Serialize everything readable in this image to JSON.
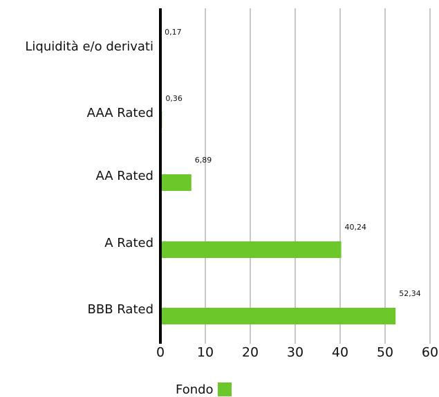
{
  "chart_data": {
    "type": "bar",
    "orientation": "horizontal",
    "categories": [
      "Liquidità e/o derivati",
      "AAA Rated",
      "AA Rated",
      "A Rated",
      "BBB Rated"
    ],
    "series": [
      {
        "name": "Fondo",
        "values": [
          0.17,
          0.36,
          6.89,
          40.24,
          52.34
        ],
        "color": "#6cc72b"
      }
    ],
    "data_labels": [
      "0,17",
      "0,36",
      "6,89",
      "40,24",
      "52,34"
    ],
    "xlim": [
      0,
      60
    ],
    "xticks": [
      0,
      10,
      20,
      30,
      40,
      50,
      60
    ],
    "xtick_labels": [
      "0",
      "10",
      "20",
      "30",
      "40",
      "50",
      "60"
    ],
    "grid": "vertical",
    "legend_position": "bottom-center"
  },
  "legend": {
    "label": "Fondo"
  },
  "colors": {
    "bar": "#6cc72b",
    "grid": "#c8c8c8",
    "axis": "#000000"
  }
}
